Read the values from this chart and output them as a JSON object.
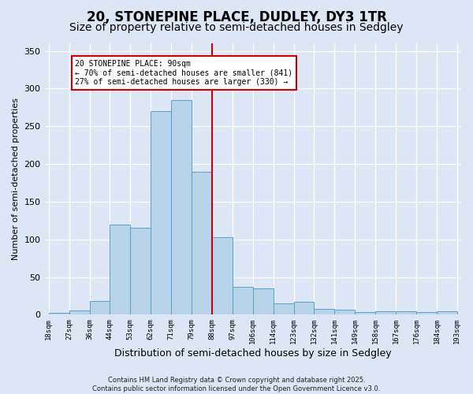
{
  "title": "20, STONEPINE PLACE, DUDLEY, DY3 1TR",
  "subtitle": "Size of property relative to semi-detached houses in Sedgley",
  "xlabel": "Distribution of semi-detached houses by size in Sedgley",
  "ylabel": "Number of semi-detached properties",
  "categories": [
    "18sqm",
    "27sqm",
    "36sqm",
    "44sqm",
    "53sqm",
    "62sqm",
    "71sqm",
    "79sqm",
    "88sqm",
    "97sqm",
    "106sqm",
    "114sqm",
    "123sqm",
    "132sqm",
    "141sqm",
    "149sqm",
    "158sqm",
    "167sqm",
    "176sqm",
    "184sqm",
    "193sqm"
  ],
  "values": [
    2,
    6,
    18,
    120,
    115,
    270,
    285,
    190,
    103,
    37,
    35,
    15,
    17,
    8,
    7,
    4,
    5,
    5,
    4,
    5
  ],
  "bar_color": "#b8d4ea",
  "bar_edge_color": "#5a9fc8",
  "vline_color": "#cc0000",
  "annotation_text": "20 STONEPINE PLACE: 90sqm\n← 70% of semi-detached houses are smaller (841)\n27% of semi-detached houses are larger (330) →",
  "annotation_box_color": "white",
  "annotation_box_edge_color": "#cc0000",
  "background_color": "#dce6f5",
  "footnote": "Contains HM Land Registry data © Crown copyright and database right 2025.\nContains public sector information licensed under the Open Government Licence v3.0.",
  "title_fontsize": 12,
  "subtitle_fontsize": 10,
  "ylabel_fontsize": 8,
  "xlabel_fontsize": 9,
  "ylim": [
    0,
    360
  ],
  "yticks": [
    0,
    50,
    100,
    150,
    200,
    250,
    300,
    350
  ],
  "vline_bar_index": 8
}
